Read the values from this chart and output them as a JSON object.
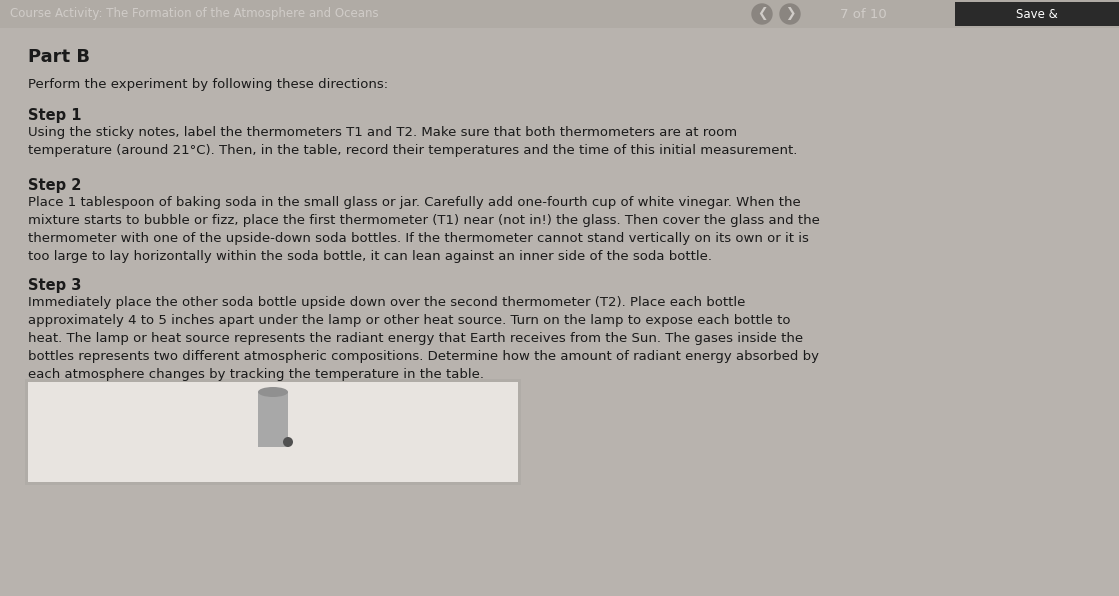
{
  "header_bg": "#b0aba5",
  "header_text": "Course Activity: The Formation of the Atmosphere and Oceans",
  "header_nav": "7 of 10",
  "header_save": "Save &",
  "header_text_color": "#d0ccc8",
  "body_bg": "#b8b3ae",
  "content_bg": "#c8c3be",
  "title": "Part B",
  "subtitle": "Perform the experiment by following these directions:",
  "step1_heading": "Step 1",
  "step1_body": "Using the sticky notes, label the thermometers T1 and T2. Make sure that both thermometers are at room\ntemperature (around 21°C). Then, in the table, record their temperatures and the time of this initial measurement.",
  "step2_heading": "Step 2",
  "step2_body": "Place 1 tablespoon of baking soda in the small glass or jar. Carefully add one-fourth cup of white vinegar. When the\nmixture starts to bubble or fizz, place the first thermometer (T1) near (not in!) the glass. Then cover the glass and the\nthermometer with one of the upside-down soda bottles. If the thermometer cannot stand vertically on its own or it is\ntoo large to lay horizontally within the soda bottle, it can lean against an inner side of the soda bottle.",
  "step3_heading": "Step 3",
  "step3_body": "Immediately place the other soda bottle upside down over the second thermometer (T2). Place each bottle\napproximately 4 to 5 inches apart under the lamp or other heat source. Turn on the lamp to expose each bottle to\nheat. The lamp or heat source represents the radiant energy that Earth receives from the Sun. The gases inside the\nbottles represents two different atmospheric compositions. Determine how the amount of radiant energy absorbed by\neach atmosphere changes by tracking the temperature in the table.",
  "text_color": "#1a1a1a",
  "heading_color": "#1a1a1a",
  "font_size_body": 9.5,
  "font_size_heading": 10.5,
  "font_size_title": 13,
  "font_size_header": 8.5,
  "nav_circle_color": "#8a8580",
  "nav_arrow_color": "#d0ccc8",
  "save_bg": "#2a2a2a",
  "save_text_color": "#ffffff",
  "img_frame_color": "#e8e4e0",
  "img_bg_color": "#d8d4cf"
}
